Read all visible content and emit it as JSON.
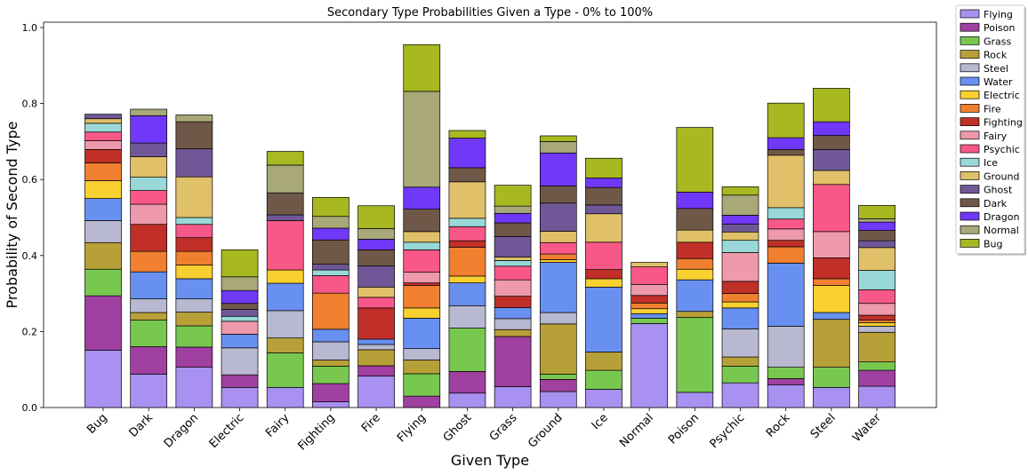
{
  "chart_data": {
    "type": "bar",
    "stacked": true,
    "title": "Secondary Type Probabilities Given a Type - 0% to 100%",
    "xlabel": "Given Type",
    "ylabel": "Probability of Second Type",
    "ylim": [
      0,
      1.0
    ],
    "yticks": [
      "0.0",
      "0.2",
      "0.4",
      "0.6",
      "0.8",
      "1.0"
    ],
    "legend_position": "outside-top-right",
    "grid": false,
    "categories": [
      "Bug",
      "Dark",
      "Dragon",
      "Electric",
      "Fairy",
      "Fighting",
      "Fire",
      "Flying",
      "Ghost",
      "Grass",
      "Ground",
      "Ice",
      "Normal",
      "Poison",
      "Psychic",
      "Rock",
      "Steel",
      "Water"
    ],
    "series": [
      {
        "name": "Flying",
        "color": "#a891f0",
        "values": [
          0.151,
          0.088,
          0.106,
          0.053,
          0.053,
          0.015,
          0.083,
          0.0,
          0.038,
          0.055,
          0.042,
          0.048,
          0.221,
          0.04,
          0.065,
          0.06,
          0.053,
          0.056
        ]
      },
      {
        "name": "Poison",
        "color": "#a040a0",
        "values": [
          0.143,
          0.072,
          0.053,
          0.033,
          0.0,
          0.048,
          0.027,
          0.03,
          0.057,
          0.132,
          0.032,
          0.0,
          0.0,
          0.0,
          0.0,
          0.016,
          0.0,
          0.042
        ]
      },
      {
        "name": "Grass",
        "color": "#78c850",
        "values": [
          0.07,
          0.07,
          0.056,
          0.0,
          0.091,
          0.046,
          0.0,
          0.059,
          0.114,
          0.0,
          0.014,
          0.05,
          0.014,
          0.197,
          0.044,
          0.03,
          0.053,
          0.022
        ]
      },
      {
        "name": "Rock",
        "color": "#b8a038",
        "values": [
          0.07,
          0.02,
          0.036,
          0.0,
          0.039,
          0.016,
          0.042,
          0.036,
          0.0,
          0.018,
          0.132,
          0.048,
          0.0,
          0.016,
          0.024,
          0.0,
          0.126,
          0.078
        ]
      },
      {
        "name": "Steel",
        "color": "#b8b8d0",
        "values": [
          0.058,
          0.036,
          0.035,
          0.071,
          0.072,
          0.048,
          0.014,
          0.03,
          0.059,
          0.029,
          0.03,
          0.0,
          0.0,
          0.0,
          0.074,
          0.108,
          0.0,
          0.016
        ]
      },
      {
        "name": "Water",
        "color": "#6890f0",
        "values": [
          0.058,
          0.071,
          0.053,
          0.036,
          0.072,
          0.033,
          0.014,
          0.08,
          0.06,
          0.029,
          0.132,
          0.171,
          0.012,
          0.083,
          0.055,
          0.166,
          0.018,
          0.0
        ]
      },
      {
        "name": "Electric",
        "color": "#f8d030",
        "values": [
          0.047,
          0.0,
          0.036,
          0.0,
          0.035,
          0.0,
          0.0,
          0.027,
          0.018,
          0.0,
          0.007,
          0.022,
          0.013,
          0.028,
          0.016,
          0.0,
          0.071,
          0.009
        ]
      },
      {
        "name": "Fire",
        "color": "#f08030",
        "values": [
          0.047,
          0.054,
          0.036,
          0.0,
          0.0,
          0.095,
          0.0,
          0.059,
          0.076,
          0.0,
          0.015,
          0.0,
          0.015,
          0.028,
          0.022,
          0.043,
          0.018,
          0.007
        ]
      },
      {
        "name": "Fighting",
        "color": "#c03028",
        "values": [
          0.035,
          0.071,
          0.036,
          0.0,
          0.0,
          0.0,
          0.082,
          0.007,
          0.017,
          0.03,
          0.0,
          0.024,
          0.02,
          0.043,
          0.032,
          0.017,
          0.055,
          0.013
        ]
      },
      {
        "name": "Fairy",
        "color": "#ee99ac",
        "values": [
          0.023,
          0.053,
          0.0,
          0.034,
          0.0,
          0.0,
          0.0,
          0.028,
          0.0,
          0.043,
          0.0,
          0.0,
          0.029,
          0.0,
          0.076,
          0.03,
          0.069,
          0.031
        ]
      },
      {
        "name": "Psychic",
        "color": "#f85888",
        "values": [
          0.023,
          0.036,
          0.035,
          0.0,
          0.13,
          0.046,
          0.028,
          0.059,
          0.037,
          0.036,
          0.03,
          0.072,
          0.046,
          0.0,
          0.0,
          0.026,
          0.124,
          0.036
        ]
      },
      {
        "name": "Ice",
        "color": "#98d8d8",
        "values": [
          0.023,
          0.035,
          0.018,
          0.013,
          0.0,
          0.015,
          0.0,
          0.02,
          0.022,
          0.015,
          0.0,
          0.0,
          0.0,
          0.0,
          0.032,
          0.03,
          0.0,
          0.051
        ]
      },
      {
        "name": "Ground",
        "color": "#e0c068",
        "values": [
          0.012,
          0.054,
          0.107,
          0.0,
          0.0,
          0.0,
          0.027,
          0.028,
          0.096,
          0.009,
          0.03,
          0.075,
          0.012,
          0.032,
          0.022,
          0.138,
          0.037,
          0.06
        ]
      },
      {
        "name": "Ghost",
        "color": "#705898",
        "values": [
          0.012,
          0.036,
          0.074,
          0.018,
          0.015,
          0.015,
          0.056,
          0.0,
          0.0,
          0.054,
          0.074,
          0.023,
          0.0,
          0.0,
          0.021,
          0.0,
          0.055,
          0.018
        ]
      },
      {
        "name": "Dark",
        "color": "#705848",
        "values": [
          0.0,
          0.0,
          0.071,
          0.016,
          0.058,
          0.064,
          0.042,
          0.059,
          0.037,
          0.036,
          0.045,
          0.046,
          0.0,
          0.057,
          0.0,
          0.015,
          0.037,
          0.027
        ]
      },
      {
        "name": "Dragon",
        "color": "#7038f8",
        "values": [
          0.0,
          0.072,
          0.0,
          0.034,
          0.0,
          0.031,
          0.028,
          0.058,
          0.078,
          0.025,
          0.087,
          0.025,
          0.0,
          0.043,
          0.023,
          0.031,
          0.036,
          0.022
        ]
      },
      {
        "name": "Normal",
        "color": "#a8a878",
        "values": [
          0.0,
          0.017,
          0.018,
          0.036,
          0.073,
          0.031,
          0.028,
          0.252,
          0.0,
          0.019,
          0.03,
          0.0,
          0.0,
          0.0,
          0.053,
          0.0,
          0.0,
          0.009
        ]
      },
      {
        "name": "Bug",
        "color": "#a8b820",
        "values": [
          0.0,
          0.0,
          0.0,
          0.071,
          0.036,
          0.05,
          0.06,
          0.123,
          0.02,
          0.055,
          0.015,
          0.052,
          0.0,
          0.17,
          0.022,
          0.091,
          0.088,
          0.035
        ]
      }
    ]
  }
}
